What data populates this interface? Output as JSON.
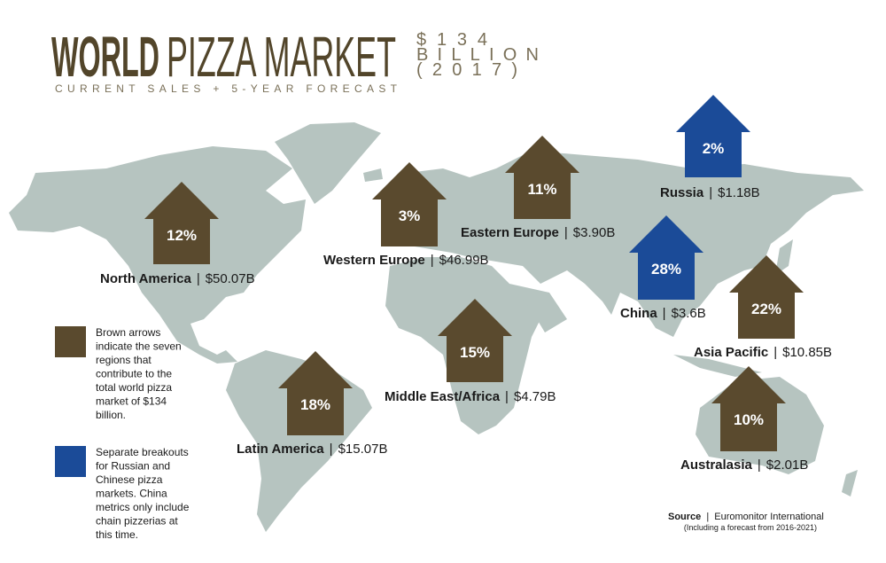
{
  "header": {
    "title_bold": "WORLD",
    "title_rest": "PIZZA MARKET",
    "subtitle": "CURRENT SALES + 5-YEAR FORECAST",
    "total": [
      "$134",
      "BILLION",
      "(2017)"
    ],
    "title_color": "#52452a",
    "total_color": "#7a7058"
  },
  "separator": "|",
  "colors": {
    "brown": "#5a4a2e",
    "blue": "#1b4b98"
  },
  "regions": [
    {
      "name": "North America",
      "value": "$50.07B",
      "growth": "12%",
      "color": "brown"
    },
    {
      "name": "Western Europe",
      "value": "$46.99B",
      "growth": "3%",
      "color": "brown"
    },
    {
      "name": "Eastern Europe",
      "value": "$3.90B",
      "growth": "11%",
      "color": "brown"
    },
    {
      "name": "Russia",
      "value": "$1.18B",
      "growth": "2%",
      "color": "blue"
    },
    {
      "name": "China",
      "value": "$3.6B",
      "growth": "28%",
      "color": "blue"
    },
    {
      "name": "Asia Pacific",
      "value": "$10.85B",
      "growth": "22%",
      "color": "brown"
    },
    {
      "name": "Middle East/Africa",
      "value": "$4.79B",
      "growth": "15%",
      "color": "brown"
    },
    {
      "name": "Latin America",
      "value": "$15.07B",
      "growth": "18%",
      "color": "brown"
    },
    {
      "name": "Australasia",
      "value": "$2.01B",
      "growth": "10%",
      "color": "brown"
    }
  ],
  "legend": [
    {
      "color": "brown",
      "lines": [
        "Brown arrows",
        "indicate the seven",
        "regions that",
        "contribute to the",
        "total world pizza",
        "market of $134",
        "billion."
      ]
    },
    {
      "color": "blue",
      "lines": [
        "Separate breakouts",
        "for Russian and",
        "Chinese pizza",
        "markets. China",
        "metrics only include",
        "chain pizzerias at",
        "this time."
      ]
    }
  ],
  "source": {
    "label": "Source",
    "name": "Euromonitor International",
    "note": "(Including a forecast from 2016-2021)"
  }
}
